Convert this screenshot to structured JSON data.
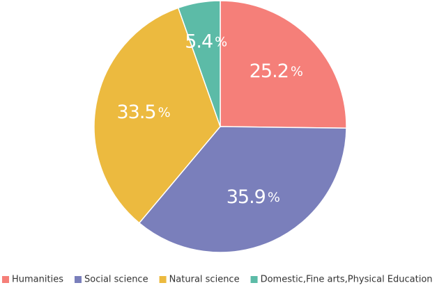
{
  "chart_data": {
    "type": "pie",
    "categories": [
      "Humanities",
      "Social science",
      "Natural science",
      "Domestic,Fine arts,Physical Education"
    ],
    "values": [
      25.2,
      35.9,
      33.5,
      5.4
    ],
    "data_labels": [
      "25.2",
      "35.9",
      "33.5",
      "5.4"
    ],
    "unit": "%",
    "colors": [
      "#f57f79",
      "#7a7fbb",
      "#ecba3f",
      "#5cbba7"
    ],
    "start_angle": "12 o'clock",
    "direction": "clockwise",
    "legend_position": "bottom"
  }
}
